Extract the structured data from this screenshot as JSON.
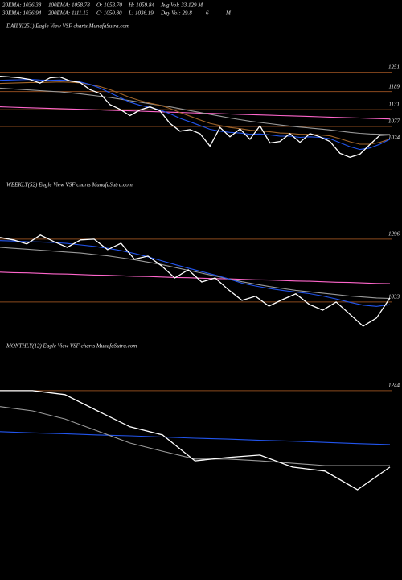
{
  "header": {
    "rows": [
      [
        "20EMA: 1036.38",
        "100EMA: 1058.78",
        "O: 1053.70",
        "H: 1059.84",
        "Avg Vol: 33.129 M"
      ],
      [
        "30EMA: 1036.94",
        "200EMA: 1111.13",
        "C: 1050.80",
        "L: 1036.19",
        "Day Vol: 29.8",
        "6",
        "M"
      ]
    ]
  },
  "chart_data": [
    {
      "type": "line",
      "title": "DAILY(251) Eagle  View  VSF charts MunafaSutra.com",
      "categories": [
        null,
        null,
        null,
        null,
        null,
        null,
        null,
        null,
        null,
        null,
        null,
        null,
        null,
        null,
        null,
        null,
        null,
        null,
        null,
        null,
        null,
        null,
        null,
        null,
        null,
        null,
        null,
        null,
        null,
        null,
        null,
        null,
        null,
        null,
        null,
        null,
        null,
        null,
        null,
        null
      ],
      "series": [
        {
          "color": "#ff66cc",
          "values": [
            1140,
            1139,
            1138,
            1137,
            1136,
            1135,
            1134,
            1133,
            1132,
            1131,
            1130,
            1129,
            1128,
            1127,
            1126,
            1125,
            1124,
            1123,
            1122,
            1121,
            1120,
            1119,
            1118,
            1117,
            1116,
            1115,
            1114,
            1113,
            1112,
            1111,
            1110,
            1109,
            1108,
            1107,
            1106,
            1105,
            1104,
            1103,
            1102,
            1101
          ]
        },
        {
          "color": "#9a9a9a",
          "values": [
            1200,
            1198,
            1196,
            1194,
            1192,
            1190,
            1188,
            1185,
            1182,
            1178,
            1174,
            1170,
            1165,
            1160,
            1155,
            1150,
            1145,
            1140,
            1134,
            1128,
            1122,
            1116,
            1110,
            1104,
            1099,
            1094,
            1090,
            1086,
            1082,
            1078,
            1075,
            1072,
            1069,
            1066,
            1062,
            1058,
            1055,
            1053,
            1052,
            1051
          ]
        },
        {
          "color": "#a0652a",
          "values": [
            1215,
            1216,
            1217,
            1218,
            1218,
            1219,
            1220,
            1219,
            1217,
            1212,
            1205,
            1195,
            1183,
            1170,
            1160,
            1152,
            1145,
            1135,
            1122,
            1110,
            1098,
            1087,
            1080,
            1074,
            1070,
            1065,
            1063,
            1060,
            1056,
            1055,
            1052,
            1052,
            1050,
            1047,
            1038,
            1028,
            1020,
            1020,
            1026,
            1037
          ]
        },
        {
          "color": "#2255ee",
          "values": [
            1225,
            1226,
            1227,
            1228,
            1226,
            1225,
            1226,
            1224,
            1220,
            1212,
            1200,
            1185,
            1170,
            1155,
            1145,
            1138,
            1130,
            1118,
            1103,
            1092,
            1080,
            1068,
            1062,
            1058,
            1056,
            1052,
            1053,
            1050,
            1046,
            1046,
            1042,
            1044,
            1042,
            1038,
            1025,
            1012,
            1003,
            1008,
            1020,
            1036
          ]
        },
        {
          "color": "#ffffff",
          "values": [
            1238,
            1236,
            1233,
            1228,
            1216,
            1233,
            1236,
            1223,
            1218,
            1195,
            1183,
            1147,
            1132,
            1112,
            1130,
            1140,
            1127,
            1087,
            1062,
            1067,
            1054,
            1014,
            1074,
            1044,
            1069,
            1036,
            1079,
            1024,
            1029,
            1054,
            1026,
            1054,
            1044,
            1029,
            991,
            978,
            988,
            1019,
            1049,
            1050
          ]
        }
      ],
      "ylim": [
        940,
        1276
      ],
      "yticks": [
        1024,
        1077,
        1131,
        1189,
        1251
      ],
      "grid": true,
      "grid_color": "#8b4a1e"
    },
    {
      "type": "line",
      "title": "WEEKLY(52) Eagle  View  VSF charts MunafaSutra.com",
      "categories": [
        null,
        null,
        null,
        null,
        null,
        null,
        null,
        null,
        null,
        null,
        null,
        null,
        null,
        null,
        null,
        null,
        null,
        null,
        null,
        null,
        null,
        null,
        null,
        null,
        null,
        null,
        null,
        null,
        null,
        null
      ],
      "series": [
        {
          "color": "#ff66cc",
          "values": [
            1158,
            1156,
            1155,
            1153,
            1151,
            1150,
            1148,
            1146,
            1145,
            1143,
            1141,
            1140,
            1138,
            1136,
            1135,
            1133,
            1131,
            1130,
            1128,
            1126,
            1125,
            1123,
            1121,
            1120,
            1118,
            1116,
            1115,
            1113,
            1111,
            1110
          ]
        },
        {
          "color": "#9a9a9a",
          "values": [
            1262,
            1258,
            1254,
            1250,
            1246,
            1242,
            1238,
            1232,
            1226,
            1218,
            1210,
            1200,
            1190,
            1178,
            1166,
            1154,
            1142,
            1130,
            1118,
            1108,
            1098,
            1090,
            1082,
            1076,
            1070,
            1064,
            1058,
            1054,
            1050,
            1048
          ]
        },
        {
          "color": "#2255ee",
          "values": [
            1290,
            1288,
            1285,
            1284,
            1282,
            1278,
            1272,
            1266,
            1258,
            1248,
            1236,
            1222,
            1206,
            1190,
            1175,
            1160,
            1146,
            1130,
            1112,
            1100,
            1090,
            1082,
            1075,
            1068,
            1058,
            1046,
            1032,
            1020,
            1015,
            1022
          ]
        },
        {
          "color": "#ffffff",
          "values": [
            1303,
            1293,
            1276,
            1313,
            1286,
            1262,
            1293,
            1296,
            1252,
            1279,
            1212,
            1225,
            1185,
            1134,
            1168,
            1117,
            1134,
            1084,
            1040,
            1057,
            1016,
            1043,
            1067,
            1023,
            999,
            1033,
            983,
            932,
            966,
            1050
          ]
        }
      ],
      "ylim": [
        898,
        1336
      ],
      "yticks": [
        1033,
        1296
      ],
      "grid": true,
      "grid_color": "#8b4a1e"
    },
    {
      "type": "line",
      "title": "MONTHLY(12) Eagle  View  VSF charts MunafaSutra.com",
      "categories": [
        null,
        null,
        null,
        null,
        null,
        null,
        null,
        null,
        null,
        null,
        null,
        null,
        null
      ],
      "series": [
        {
          "color": "#2255ee",
          "values": [
            1108,
            1104,
            1101,
            1097,
            1094,
            1090,
            1086,
            1083,
            1079,
            1076,
            1072,
            1068,
            1065
          ]
        },
        {
          "color": "#9a9a9a",
          "values": [
            1191,
            1177,
            1150,
            1110,
            1070,
            1043,
            1017,
            1017,
            1011,
            1003,
            995,
            995,
            995
          ]
        },
        {
          "color": "#ffffff",
          "values": [
            1244,
            1244,
            1231,
            1177,
            1124,
            1097,
            1011,
            1022,
            1030,
            990,
            977,
            915,
            990
          ]
        }
      ],
      "ylim": [
        669,
        1364
      ],
      "yticks": [
        1244
      ],
      "grid": true,
      "grid_color": "#8b4a1e"
    }
  ]
}
